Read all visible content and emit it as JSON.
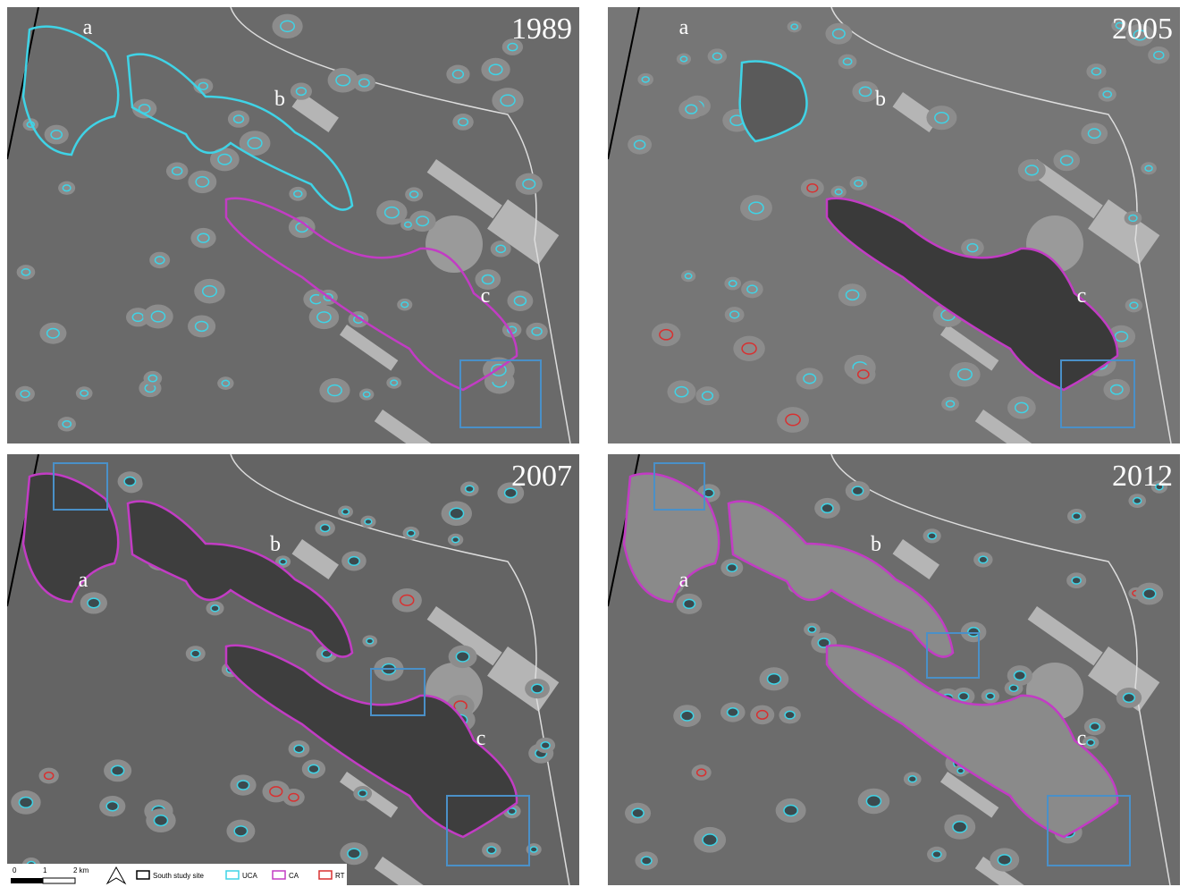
{
  "panels": [
    {
      "year": "1989",
      "labels": [
        "a",
        "b",
        "c"
      ]
    },
    {
      "year": "2005",
      "labels": [
        "a",
        "b",
        "c"
      ]
    },
    {
      "year": "2007",
      "labels": [
        "a",
        "b",
        "c"
      ]
    },
    {
      "year": "2012",
      "labels": [
        "a",
        "b",
        "c"
      ]
    }
  ],
  "scale_bar": {
    "ticks": [
      "0",
      "1",
      "2 km"
    ]
  },
  "legend": {
    "items": [
      "South study site",
      "UCA",
      "CA",
      "RT"
    ]
  }
}
